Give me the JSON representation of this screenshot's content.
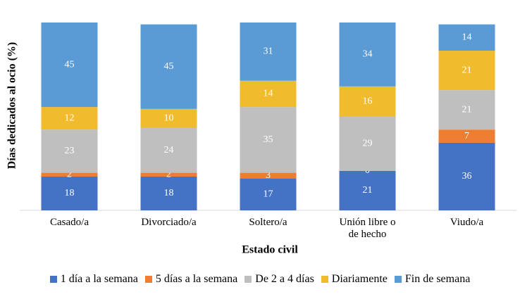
{
  "chart_data": {
    "type": "stacked_bar",
    "y_label": "Días dedicados al ocio (%)",
    "x_label": "Estado civil",
    "categories": [
      "Casado/a",
      "Divorciado/a",
      "Soltero/a",
      "Unión libre o de hecho",
      "Viudo/a"
    ],
    "ylim": [
      0,
      100
    ],
    "series": [
      {
        "name": "1 día a la semana",
        "color": "#4472c4",
        "values": [
          18,
          18,
          17,
          21,
          36
        ]
      },
      {
        "name": "5 días a la semana",
        "color": "#ed7d31",
        "values": [
          2,
          2,
          3,
          0,
          7
        ]
      },
      {
        "name": "De 2 a 4 días",
        "color": "#bfbfbf",
        "values": [
          23,
          24,
          35,
          29,
          21
        ]
      },
      {
        "name": "Diariamente",
        "color": "#f0bb2d",
        "values": [
          12,
          10,
          14,
          16,
          21
        ]
      },
      {
        "name": "Fin de semana",
        "color": "#5b9bd5",
        "values": [
          45,
          45,
          31,
          34,
          14
        ]
      }
    ]
  }
}
